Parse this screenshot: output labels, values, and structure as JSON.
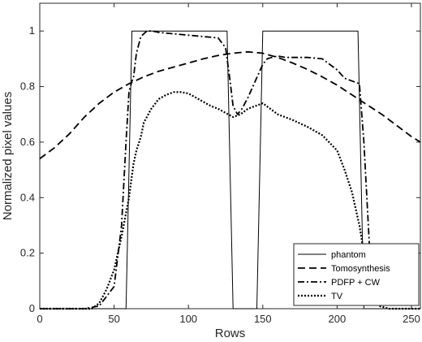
{
  "chart_data": {
    "type": "line",
    "title": "",
    "xlabel": "Rows",
    "ylabel": "Normalized pixel values",
    "xlim": [
      0,
      256
    ],
    "ylim": [
      0,
      1.1
    ],
    "xticks": [
      0,
      50,
      100,
      150,
      200,
      250
    ],
    "yticks": [
      0,
      0.2,
      0.4,
      0.6,
      0.8,
      1
    ],
    "xtick_labels": [
      "0",
      "50",
      "100",
      "150",
      "200",
      "250"
    ],
    "ytick_labels": [
      "0",
      "0.2",
      "0.4",
      "0.6",
      "0.8",
      "1"
    ],
    "grid": false,
    "legend_position": "bottom-right",
    "series": [
      {
        "name": "phantom",
        "style": "solid",
        "color": "#000000",
        "x": [
          0,
          58,
          62,
          126,
          130,
          146,
          150,
          214,
          218,
          256
        ],
        "y": [
          0,
          0,
          1,
          1,
          0,
          0,
          1,
          1,
          0,
          0
        ]
      },
      {
        "name": "Tomosynthesis",
        "style": "dashed",
        "color": "#000000",
        "x": [
          0,
          10,
          20,
          30,
          40,
          50,
          60,
          70,
          80,
          90,
          100,
          110,
          120,
          130,
          140,
          150,
          160,
          170,
          180,
          190,
          200,
          210,
          220,
          230,
          240,
          250,
          256
        ],
        "y": [
          0.54,
          0.58,
          0.63,
          0.69,
          0.74,
          0.78,
          0.81,
          0.835,
          0.855,
          0.87,
          0.885,
          0.9,
          0.912,
          0.92,
          0.925,
          0.92,
          0.905,
          0.885,
          0.862,
          0.835,
          0.805,
          0.77,
          0.735,
          0.7,
          0.66,
          0.62,
          0.6
        ]
      },
      {
        "name": "PDFP + CW",
        "style": "dashdot",
        "color": "#000000",
        "x": [
          0,
          20,
          30,
          40,
          50,
          55,
          58,
          60,
          62,
          63,
          65,
          68,
          72,
          76,
          80,
          90,
          100,
          110,
          120,
          125,
          128,
          130,
          133,
          136,
          140,
          145,
          150,
          153,
          156,
          160,
          165,
          170,
          180,
          190,
          200,
          205,
          210,
          215,
          218,
          222,
          225,
          230,
          240,
          250,
          256
        ],
        "y": [
          0,
          0,
          0,
          0.01,
          0.08,
          0.3,
          0.6,
          0.78,
          0.82,
          0.83,
          0.92,
          0.98,
          1.0,
          1.0,
          0.995,
          0.99,
          0.985,
          0.98,
          0.975,
          0.94,
          0.82,
          0.73,
          0.7,
          0.72,
          0.76,
          0.82,
          0.88,
          0.9,
          0.905,
          0.91,
          0.905,
          0.905,
          0.905,
          0.9,
          0.86,
          0.83,
          0.82,
          0.81,
          0.6,
          0.2,
          0.05,
          0.02,
          0.02,
          0.02,
          0.02
        ]
      },
      {
        "name": "TV",
        "style": "dotted",
        "color": "#000000",
        "x": [
          0,
          20,
          30,
          35,
          40,
          45,
          50,
          55,
          60,
          63,
          65,
          68,
          70,
          75,
          80,
          85,
          90,
          95,
          100,
          105,
          110,
          115,
          120,
          125,
          130,
          135,
          140,
          145,
          150,
          155,
          160,
          170,
          180,
          190,
          200,
          205,
          210,
          215,
          218,
          220,
          225,
          228,
          235,
          245,
          256
        ],
        "y": [
          0,
          0,
          0,
          0,
          0.02,
          0.07,
          0.14,
          0.26,
          0.4,
          0.52,
          0.57,
          0.62,
          0.67,
          0.72,
          0.755,
          0.77,
          0.78,
          0.78,
          0.775,
          0.76,
          0.745,
          0.73,
          0.72,
          0.705,
          0.69,
          0.7,
          0.72,
          0.73,
          0.74,
          0.72,
          0.7,
          0.68,
          0.655,
          0.625,
          0.57,
          0.5,
          0.42,
          0.3,
          0.2,
          0.13,
          0.03,
          0.01,
          0.0,
          0.0,
          0.0
        ]
      }
    ]
  }
}
